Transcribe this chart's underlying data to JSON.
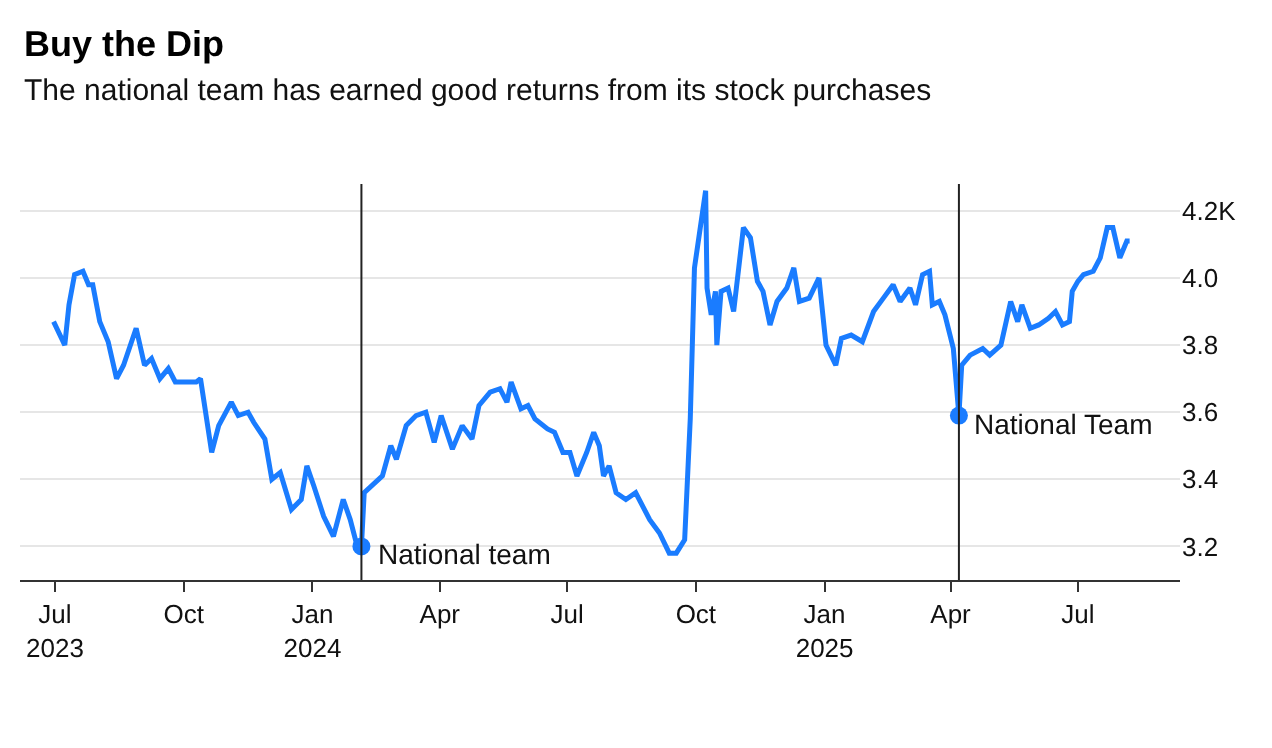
{
  "chart_data": {
    "type": "line",
    "title": "Buy the Dip",
    "subtitle": "The national team has earned good returns from its stock purchases",
    "x": [
      "2023-06-30",
      "2023-07-08",
      "2023-07-11",
      "2023-07-15",
      "2023-07-21",
      "2023-07-25",
      "2023-07-28",
      "2023-08-02",
      "2023-08-08",
      "2023-08-14",
      "2023-08-19",
      "2023-08-28",
      "2023-09-03",
      "2023-09-08",
      "2023-09-14",
      "2023-09-20",
      "2023-09-25",
      "2023-10-10",
      "2023-10-13",
      "2023-10-21",
      "2023-10-26",
      "2023-11-04",
      "2023-11-09",
      "2023-11-16",
      "2023-11-20",
      "2023-11-28",
      "2023-12-03",
      "2023-12-09",
      "2023-12-17",
      "2023-12-24",
      "2023-12-28",
      "2024-01-02",
      "2024-01-09",
      "2024-01-16",
      "2024-01-23",
      "2024-01-28",
      "2024-02-02",
      "2024-02-05",
      "2024-02-07",
      "2024-02-20",
      "2024-02-26",
      "2024-03-01",
      "2024-03-08",
      "2024-03-15",
      "2024-03-22",
      "2024-03-28",
      "2024-04-02",
      "2024-04-10",
      "2024-04-17",
      "2024-04-24",
      "2024-04-29",
      "2024-05-07",
      "2024-05-14",
      "2024-05-19",
      "2024-05-22",
      "2024-05-29",
      "2024-06-03",
      "2024-06-08",
      "2024-06-17",
      "2024-06-22",
      "2024-06-28",
      "2024-07-03",
      "2024-07-08",
      "2024-07-15",
      "2024-07-20",
      "2024-07-24",
      "2024-07-27",
      "2024-07-31",
      "2024-08-05",
      "2024-08-12",
      "2024-08-19",
      "2024-08-29",
      "2024-09-05",
      "2024-09-12",
      "2024-09-17",
      "2024-09-23",
      "2024-09-27",
      "2024-09-30",
      "2024-10-08",
      "2024-10-09",
      "2024-10-12",
      "2024-10-15",
      "2024-10-16",
      "2024-10-19",
      "2024-10-24",
      "2024-10-28",
      "2024-11-04",
      "2024-11-09",
      "2024-11-14",
      "2024-11-18",
      "2024-11-23",
      "2024-11-28",
      "2024-12-05",
      "2024-12-10",
      "2024-12-14",
      "2024-12-21",
      "2024-12-28",
      "2025-01-02",
      "2025-01-09",
      "2025-01-13",
      "2025-01-20",
      "2025-01-28",
      "2025-02-05",
      "2025-02-12",
      "2025-02-19",
      "2025-02-24",
      "2025-03-03",
      "2025-03-07",
      "2025-03-12",
      "2025-03-17",
      "2025-03-19",
      "2025-03-24",
      "2025-03-28",
      "2025-04-03",
      "2025-04-07",
      "2025-04-09",
      "2025-04-15",
      "2025-04-24",
      "2025-04-29",
      "2025-05-07",
      "2025-05-14",
      "2025-05-19",
      "2025-05-22",
      "2025-05-28",
      "2025-06-03",
      "2025-06-10",
      "2025-06-15",
      "2025-06-20",
      "2025-06-25",
      "2025-06-27",
      "2025-07-01",
      "2025-07-05",
      "2025-07-12",
      "2025-07-17",
      "2025-07-22",
      "2025-07-26",
      "2025-07-31",
      "2025-08-05",
      "2025-08-07"
    ],
    "series": [
      {
        "color": "#1a7cff",
        "values": [
          3.87,
          3.8,
          3.92,
          4.01,
          4.02,
          3.98,
          3.98,
          3.87,
          3.81,
          3.7,
          3.74,
          3.85,
          3.74,
          3.76,
          3.7,
          3.73,
          3.69,
          3.69,
          3.7,
          3.48,
          3.56,
          3.63,
          3.59,
          3.6,
          3.57,
          3.52,
          3.4,
          3.42,
          3.31,
          3.34,
          3.44,
          3.38,
          3.29,
          3.23,
          3.34,
          3.28,
          3.2,
          3.2,
          3.36,
          3.41,
          3.5,
          3.46,
          3.56,
          3.59,
          3.6,
          3.51,
          3.59,
          3.49,
          3.56,
          3.52,
          3.62,
          3.66,
          3.67,
          3.63,
          3.69,
          3.61,
          3.62,
          3.58,
          3.55,
          3.54,
          3.48,
          3.48,
          3.41,
          3.48,
          3.54,
          3.5,
          3.41,
          3.44,
          3.36,
          3.34,
          3.36,
          3.28,
          3.24,
          3.18,
          3.18,
          3.22,
          3.58,
          4.03,
          4.26,
          3.97,
          3.89,
          3.96,
          3.8,
          3.96,
          3.97,
          3.9,
          4.15,
          4.12,
          3.99,
          3.96,
          3.86,
          3.93,
          3.97,
          4.03,
          3.93,
          3.94,
          4.0,
          3.8,
          3.74,
          3.82,
          3.83,
          3.81,
          3.9,
          3.94,
          3.98,
          3.93,
          3.97,
          3.92,
          4.01,
          4.02,
          3.92,
          3.93,
          3.89,
          3.79,
          3.59,
          3.74,
          3.77,
          3.79,
          3.77,
          3.8,
          3.93,
          3.87,
          3.92,
          3.85,
          3.86,
          3.88,
          3.9,
          3.86,
          3.87,
          3.96,
          3.99,
          4.01,
          4.02,
          4.06,
          4.15,
          4.15,
          4.06,
          4.11,
          4.11
        ]
      }
    ],
    "xlim": [
      "2023-06-06",
      "2025-09-12"
    ],
    "xticks": [
      {
        "value": "2023-07-01",
        "label": "Jul\n2023"
      },
      {
        "value": "2023-10-01",
        "label": "Oct"
      },
      {
        "value": "2024-01-01",
        "label": "Jan\n2024"
      },
      {
        "value": "2024-04-01",
        "label": "Apr"
      },
      {
        "value": "2024-07-01",
        "label": "Jul"
      },
      {
        "value": "2024-10-01",
        "label": "Oct"
      },
      {
        "value": "2025-01-01",
        "label": "Jan\n2025"
      },
      {
        "value": "2025-04-01",
        "label": "Apr"
      },
      {
        "value": "2025-07-01",
        "label": "Jul"
      }
    ],
    "ylim": [
      3.1,
      4.28
    ],
    "yticks": [
      3.2,
      3.4,
      3.6,
      3.8,
      {
        "value": 4.0,
        "label": "4.0"
      },
      {
        "value": 4.2,
        "label": "4.2K"
      }
    ],
    "ref_lines": [
      {
        "axis": "x",
        "value": "2024-02-05",
        "color": "#222222"
      },
      {
        "axis": "x",
        "value": "2025-04-07",
        "color": "#222222"
      }
    ],
    "annotations": [
      {
        "text": "National team",
        "x": "2024-02-05",
        "y": 3.2
      },
      {
        "text": "National Team",
        "x": "2025-04-07",
        "y": 3.59
      }
    ],
    "grid": "y",
    "marker": "none",
    "line_style": "solid"
  }
}
